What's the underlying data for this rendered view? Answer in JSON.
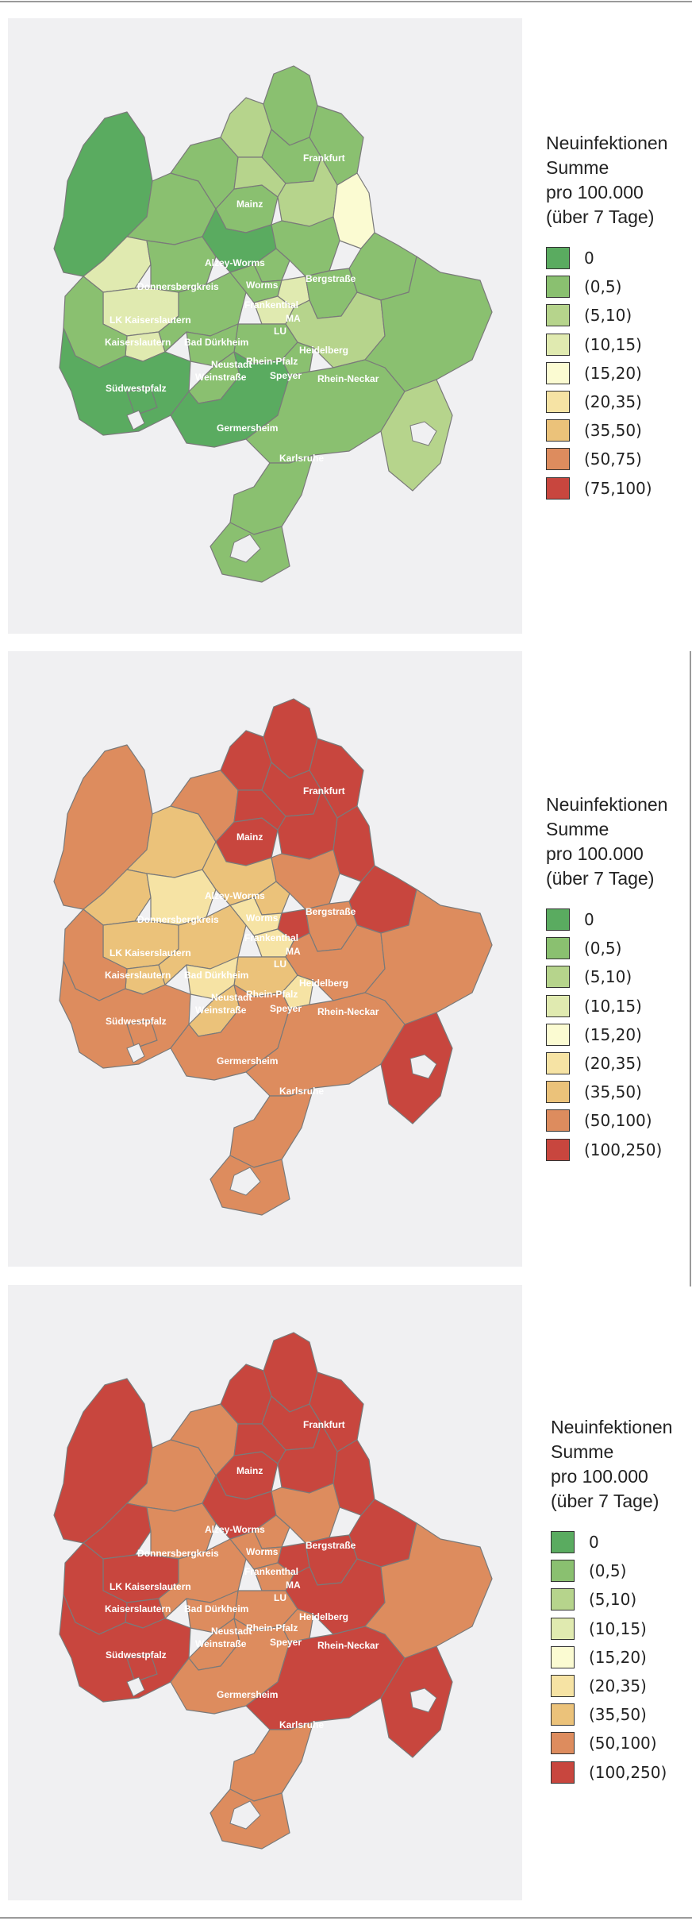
{
  "palette": {
    "c0": "#5aab60",
    "c1": "#8ac070",
    "c2": "#b6d48c",
    "c3": "#e0eab0",
    "c4": "#fbfbd2",
    "c5": "#f6e3a4",
    "c6": "#ebc27a",
    "c7": "#dd8c5e",
    "c8": "#c8463e"
  },
  "region_labels": {
    "frankfurt": "Frankfurt",
    "mainz": "Mainz",
    "alzey_worms": "Alzey-Worms",
    "donnersbergkreis": "Donnersbergkreis",
    "worms": "Worms",
    "bergstrasse": "Bergstraße",
    "frankenthal": "Frankenthal",
    "ma": "MA",
    "lu": "LU",
    "lk_kaiserslautern": "LK Kaiserslautern",
    "kaiserslautern": "Kaiserslautern",
    "bad_duerkheim": "Bad Dürkheim",
    "heidelberg": "Heidelberg",
    "neustadt": "Neustadt",
    "weinstrasse": "Weinstraße",
    "rhein_pfalz": "Rhein-Pfalz",
    "speyer": "Speyer",
    "rhein_neckar": "Rhein-Neckar",
    "suedwestpfalz": "Südwestpfalz",
    "germersheim": "Germersheim",
    "karlsruhe": "Karlsruhe"
  },
  "maps": [
    {
      "legend": {
        "title_line1": "Neuinfektionen",
        "title_line2": "Summe",
        "title_line3": "pro 100.000",
        "title_line4": "(über 7 Tage)",
        "items": [
          {
            "label": "0",
            "color": "#5aab60"
          },
          {
            "label": "(0,5)",
            "color": "#8ac070"
          },
          {
            "label": "(5,10)",
            "color": "#b6d48c"
          },
          {
            "label": "(10,15)",
            "color": "#e0eab0"
          },
          {
            "label": "(15,20)",
            "color": "#fbfbd2"
          },
          {
            "label": "(20,35)",
            "color": "#f6e3a4"
          },
          {
            "label": "(35,50)",
            "color": "#ebc27a"
          },
          {
            "label": "(50,75)",
            "color": "#dd8c5e"
          },
          {
            "label": "(75,100)",
            "color": "#c8463e"
          }
        ]
      },
      "region_classes": {
        "frankfurt": 1,
        "wetterau": 1,
        "maintaunus": 2,
        "hochtaunus": 2,
        "rheingau": 1,
        "ost": 1,
        "darmstadt": 2,
        "odenwald": 4,
        "mainz": 1,
        "alzey_worms": 0,
        "donnersbergkreis": 1,
        "bergstrasse": 1,
        "lk_kaiserslautern": 3,
        "kaiserslautern": 1,
        "bad_duerkheim": 1,
        "rhein_pfalz": 1,
        "rhein_neckar": 2,
        "east": 1,
        "suedwestpfalz": 0,
        "germersheim": 0,
        "karlsruhe": 1,
        "hunsrueck": 0,
        "birkenfeld": 1,
        "kusel": 3,
        "worms": 1,
        "frankenthal": 1,
        "ma": 3,
        "lu": 3,
        "heidelberg": 1,
        "neustadt": 1,
        "speyer": 1,
        "kaiserslautern_city": 3,
        "landau": 1,
        "pirmasens": 0,
        "neckar_odenwald": 1,
        "enclave_se": 2,
        "loop_s": 1,
        "loop_s2": 1
      }
    },
    {
      "legend": {
        "title_line1": "Neuinfektionen",
        "title_line2": "Summe",
        "title_line3": "pro 100.000",
        "title_line4": "(über 7 Tage)",
        "items": [
          {
            "label": "0",
            "color": "#5aab60"
          },
          {
            "label": "(0,5)",
            "color": "#8ac070"
          },
          {
            "label": "(5,10)",
            "color": "#b6d48c"
          },
          {
            "label": "(10,15)",
            "color": "#e0eab0"
          },
          {
            "label": "(15,20)",
            "color": "#fbfbd2"
          },
          {
            "label": "(20,35)",
            "color": "#f6e3a4"
          },
          {
            "label": "(35,50)",
            "color": "#ebc27a"
          },
          {
            "label": "(50,100)",
            "color": "#dd8c5e"
          },
          {
            "label": "(100,250)",
            "color": "#c8463e"
          }
        ]
      },
      "region_classes": {
        "frankfurt": 8,
        "wetterau": 8,
        "maintaunus": 8,
        "hochtaunus": 8,
        "rheingau": 7,
        "ost": 8,
        "darmstadt": 8,
        "odenwald": 8,
        "mainz": 8,
        "alzey_worms": 6,
        "donnersbergkreis": 5,
        "bergstrasse": 7,
        "lk_kaiserslautern": 6,
        "kaiserslautern": 7,
        "bad_duerkheim": 6,
        "rhein_pfalz": 6,
        "rhein_neckar": 7,
        "east": 7,
        "suedwestpfalz": 7,
        "germersheim": 7,
        "karlsruhe": 7,
        "hunsrueck": 7,
        "birkenfeld": 6,
        "kusel": 6,
        "worms": 6,
        "frankenthal": 5,
        "ma": 8,
        "lu": 5,
        "heidelberg": 7,
        "neustadt": 5,
        "speyer": 5,
        "kaiserslautern_city": 6,
        "landau": 6,
        "pirmasens": 7,
        "neckar_odenwald": 8,
        "enclave_se": 8,
        "loop_s": 7,
        "loop_s2": 7
      }
    },
    {
      "legend": {
        "title_line1": "Neuinfektionen",
        "title_line2": "Summe",
        "title_line3": "pro 100.000",
        "title_line4": "(über 7 Tage)",
        "items": [
          {
            "label": "0",
            "color": "#5aab60"
          },
          {
            "label": "(0,5)",
            "color": "#8ac070"
          },
          {
            "label": "(5,10)",
            "color": "#b6d48c"
          },
          {
            "label": "(10,15)",
            "color": "#e0eab0"
          },
          {
            "label": "(15,20)",
            "color": "#fbfbd2"
          },
          {
            "label": "(20,35)",
            "color": "#f6e3a4"
          },
          {
            "label": "(35,50)",
            "color": "#ebc27a"
          },
          {
            "label": "(50,100)",
            "color": "#dd8c5e"
          },
          {
            "label": "(100,250)",
            "color": "#c8463e"
          }
        ]
      },
      "region_classes": {
        "frankfurt": 8,
        "wetterau": 8,
        "maintaunus": 8,
        "hochtaunus": 8,
        "rheingau": 7,
        "ost": 8,
        "darmstadt": 8,
        "odenwald": 8,
        "mainz": 8,
        "alzey_worms": 8,
        "donnersbergkreis": 7,
        "bergstrasse": 7,
        "lk_kaiserslautern": 8,
        "kaiserslautern": 8,
        "bad_duerkheim": 7,
        "rhein_pfalz": 7,
        "rhein_neckar": 8,
        "east": 7,
        "suedwestpfalz": 8,
        "germersheim": 7,
        "karlsruhe": 8,
        "hunsrueck": 8,
        "birkenfeld": 7,
        "kusel": 8,
        "worms": 7,
        "frankenthal": 7,
        "ma": 8,
        "lu": 7,
        "heidelberg": 8,
        "neustadt": 7,
        "speyer": 7,
        "kaiserslautern_city": 8,
        "landau": 7,
        "pirmasens": 8,
        "neckar_odenwald": 8,
        "enclave_se": 8,
        "loop_s": 7,
        "loop_s2": 7
      }
    }
  ]
}
